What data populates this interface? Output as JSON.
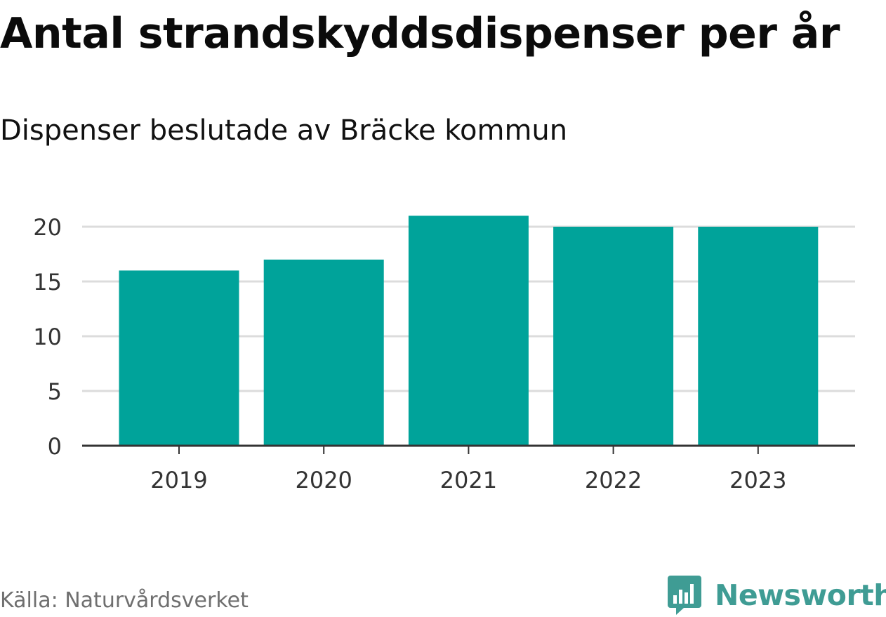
{
  "colors": {
    "bar": "#00a39a",
    "grid": "#dcdcdc",
    "axis": "#333333",
    "logo": "#3f9c94"
  },
  "source": "Källa: Naturvårdsverket",
  "brand": {
    "name": "Newsworthy",
    "icon": "chart-badge-icon"
  },
  "chart_data": {
    "type": "bar",
    "title": "Antal strandskyddsdispenser per år",
    "subtitle": "Dispenser beslutade av Bräcke kommun",
    "categories": [
      "2019",
      "2020",
      "2021",
      "2022",
      "2023"
    ],
    "values": [
      16,
      17,
      21,
      20,
      20
    ],
    "ylim": [
      0,
      22
    ],
    "yticks": [
      "0",
      "5",
      "10",
      "15",
      "20"
    ],
    "grid": true,
    "legend": "none"
  }
}
